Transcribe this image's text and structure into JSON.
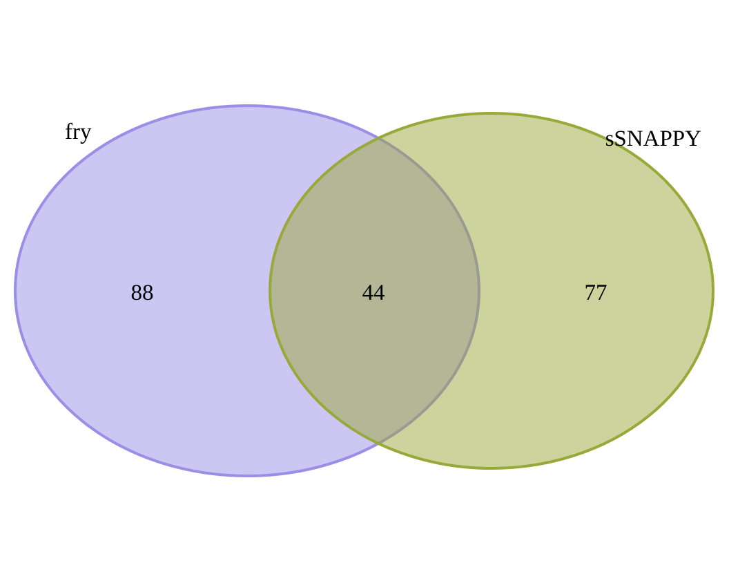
{
  "diagram": {
    "type": "venn",
    "sets": [
      {
        "name": "fry",
        "fill": "#9a8fe6",
        "stroke": "#9a8fe6"
      },
      {
        "name": "sSNAPPY",
        "fill": "#9aa83a",
        "stroke": "#9aa83a"
      }
    ],
    "regions": {
      "fry_only": "88",
      "intersection": "44",
      "ssnappy_only": "77"
    }
  }
}
